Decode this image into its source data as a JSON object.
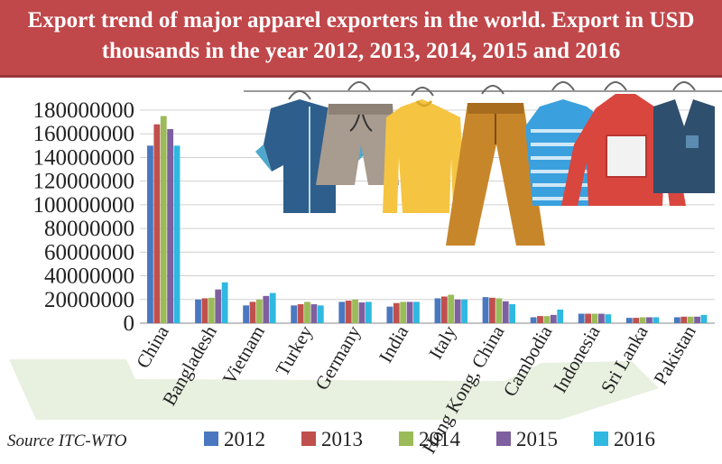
{
  "title": "Export trend of major apparel exporters in the world. Export in USD thousands in the year 2012, 2013, 2014, 2015 and 2016",
  "source": "Source ITC-WTO",
  "colors": {
    "banner": "#c0474a",
    "series": [
      "#4a78c0",
      "#c0504d",
      "#9bbb59",
      "#7e5fa0",
      "#2fb8e0"
    ]
  },
  "icons": [
    "shirt-icon",
    "shorts-icon",
    "sweater-icon",
    "trousers-icon",
    "striped-shirt-icon",
    "hoodie-icon",
    "vest-icon",
    "ship-icon"
  ],
  "chart_data": {
    "type": "bar",
    "title": "Export trend of major apparel exporters in the world. Export in USD thousands in the year 2012, 2013, 2014, 2015 and 2016",
    "xlabel": "",
    "ylabel": "",
    "ylim": [
      0,
      180000000
    ],
    "yticks": [
      "0",
      "20000000",
      "40000000",
      "60000000",
      "80000000",
      "100000000",
      "120000000",
      "140000000",
      "160000000",
      "180000000"
    ],
    "grid": true,
    "legend": "bottom",
    "categories": [
      "China",
      "Bangladesh",
      "Vietnam",
      "Turkey",
      "Germany",
      "India",
      "Italy",
      "Hong Kong, China",
      "Cambodia",
      "Indonesia",
      "Sri Lanka",
      "Pakistan"
    ],
    "series": [
      {
        "name": "2012",
        "values": [
          150000000,
          20000000,
          15000000,
          15000000,
          18000000,
          14000000,
          21000000,
          22000000,
          5000000,
          8000000,
          4500000,
          5000000
        ]
      },
      {
        "name": "2013",
        "values": [
          168000000,
          21000000,
          18000000,
          16000000,
          19000000,
          17000000,
          22500000,
          21500000,
          6000000,
          8000000,
          4500000,
          5500000
        ]
      },
      {
        "name": "2014",
        "values": [
          175000000,
          21500000,
          20000000,
          18000000,
          20000000,
          18000000,
          24000000,
          21000000,
          6000000,
          8000000,
          5000000,
          5500000
        ]
      },
      {
        "name": "2015",
        "values": [
          164000000,
          28500000,
          23000000,
          16000000,
          17500000,
          18000000,
          20000000,
          18500000,
          7000000,
          8000000,
          5000000,
          5500000
        ]
      },
      {
        "name": "2016",
        "values": [
          150000000,
          34500000,
          25500000,
          15000000,
          18000000,
          18000000,
          20000000,
          16000000,
          11500000,
          7500000,
          5000000,
          7000000
        ]
      }
    ]
  }
}
